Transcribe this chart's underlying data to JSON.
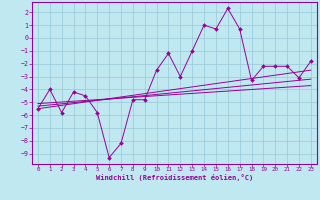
{
  "title": "",
  "xlabel": "Windchill (Refroidissement éolien,°C)",
  "background_color": "#c0e8f0",
  "grid_color": "#98c8d8",
  "line_color": "#990099",
  "xlim": [
    -0.5,
    23.5
  ],
  "ylim": [
    -9.8,
    2.8
  ],
  "xticks": [
    0,
    1,
    2,
    3,
    4,
    5,
    6,
    7,
    8,
    9,
    10,
    11,
    12,
    13,
    14,
    15,
    16,
    17,
    18,
    19,
    20,
    21,
    22,
    23
  ],
  "yticks": [
    2,
    1,
    0,
    -1,
    -2,
    -3,
    -4,
    -5,
    -6,
    -7,
    -8,
    -9
  ],
  "main_x": [
    0,
    1,
    2,
    3,
    4,
    5,
    6,
    7,
    8,
    9,
    10,
    11,
    12,
    13,
    14,
    15,
    16,
    17,
    18,
    19,
    20,
    21,
    22,
    23
  ],
  "main_y": [
    -5.5,
    -4.0,
    -5.8,
    -4.2,
    -4.5,
    -5.8,
    -9.3,
    -8.2,
    -4.8,
    -4.8,
    -2.5,
    -1.2,
    -3.0,
    -1.0,
    1.0,
    0.7,
    2.3,
    0.7,
    -3.3,
    -2.2,
    -2.2,
    -2.2,
    -3.1,
    -1.8
  ],
  "line1_x": [
    0,
    23
  ],
  "line1_y": [
    -5.5,
    -2.5
  ],
  "line2_x": [
    0,
    23
  ],
  "line2_y": [
    -5.3,
    -3.2
  ],
  "line3_x": [
    0,
    23
  ],
  "line3_y": [
    -5.1,
    -3.7
  ]
}
